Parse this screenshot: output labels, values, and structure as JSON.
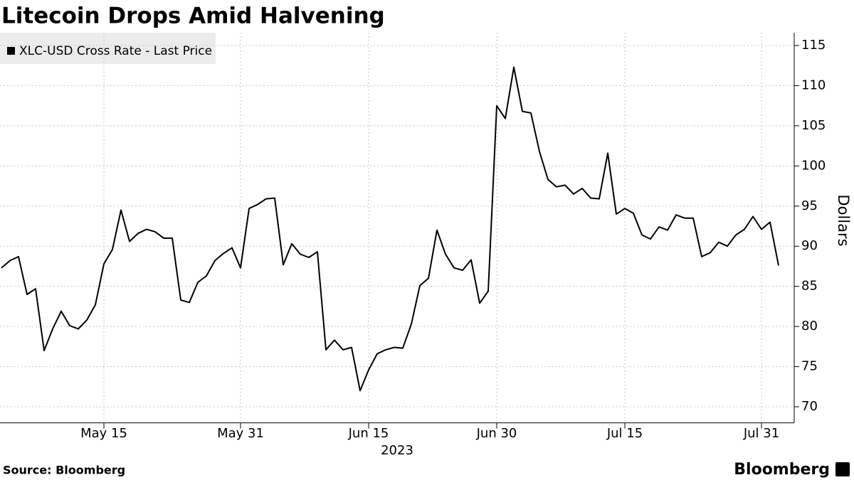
{
  "chart_data": {
    "type": "line",
    "title": "Litecoin Drops Amid Halvening",
    "y_label": "Dollars",
    "x_sublabel": "2023",
    "source": "Source: Bloomberg",
    "brand": "Bloomberg",
    "grid": true,
    "legend": "top-left",
    "xlim": [
      "2023-05-03",
      "2023-08-04"
    ],
    "ylim": [
      68,
      117
    ],
    "yticks": [
      70,
      75,
      80,
      85,
      90,
      95,
      100,
      105,
      110,
      115
    ],
    "xticks": [
      {
        "value": "2023-05-15",
        "label": "May 15"
      },
      {
        "value": "2023-05-31",
        "label": "May 31"
      },
      {
        "value": "2023-06-15",
        "label": "Jun 15"
      },
      {
        "value": "2023-06-30",
        "label": "Jun 30"
      },
      {
        "value": "2023-07-15",
        "label": "Jul 15"
      },
      {
        "value": "2023-07-31",
        "label": "Jul 31"
      }
    ],
    "x": [
      "2023-05-03",
      "2023-05-04",
      "2023-05-05",
      "2023-05-06",
      "2023-05-07",
      "2023-05-08",
      "2023-05-09",
      "2023-05-10",
      "2023-05-11",
      "2023-05-12",
      "2023-05-13",
      "2023-05-14",
      "2023-05-15",
      "2023-05-16",
      "2023-05-17",
      "2023-05-18",
      "2023-05-19",
      "2023-05-20",
      "2023-05-21",
      "2023-05-22",
      "2023-05-23",
      "2023-05-24",
      "2023-05-25",
      "2023-05-26",
      "2023-05-27",
      "2023-05-28",
      "2023-05-29",
      "2023-05-30",
      "2023-05-31",
      "2023-06-01",
      "2023-06-02",
      "2023-06-03",
      "2023-06-04",
      "2023-06-05",
      "2023-06-06",
      "2023-06-07",
      "2023-06-08",
      "2023-06-09",
      "2023-06-10",
      "2023-06-11",
      "2023-06-12",
      "2023-06-13",
      "2023-06-14",
      "2023-06-15",
      "2023-06-16",
      "2023-06-17",
      "2023-06-18",
      "2023-06-19",
      "2023-06-20",
      "2023-06-21",
      "2023-06-22",
      "2023-06-23",
      "2023-06-24",
      "2023-06-25",
      "2023-06-26",
      "2023-06-27",
      "2023-06-28",
      "2023-06-29",
      "2023-06-30",
      "2023-07-01",
      "2023-07-02",
      "2023-07-03",
      "2023-07-04",
      "2023-07-05",
      "2023-07-06",
      "2023-07-07",
      "2023-07-08",
      "2023-07-09",
      "2023-07-10",
      "2023-07-11",
      "2023-07-12",
      "2023-07-13",
      "2023-07-14",
      "2023-07-15",
      "2023-07-16",
      "2023-07-17",
      "2023-07-18",
      "2023-07-19",
      "2023-07-20",
      "2023-07-21",
      "2023-07-22",
      "2023-07-23",
      "2023-07-24",
      "2023-07-25",
      "2023-07-26",
      "2023-07-27",
      "2023-07-28",
      "2023-07-29",
      "2023-07-30",
      "2023-07-31",
      "2023-08-01",
      "2023-08-02"
    ],
    "series": [
      {
        "name": "XLC-USD Cross Rate - Last Price",
        "color": "#000000",
        "values": [
          87.3,
          88.2,
          88.7,
          84.0,
          84.7,
          77.0,
          79.7,
          81.9,
          80.1,
          79.7,
          80.8,
          82.7,
          87.8,
          89.6,
          94.5,
          90.6,
          91.6,
          92.1,
          91.8,
          91.0,
          91.0,
          83.3,
          83.0,
          85.5,
          86.3,
          88.2,
          89.1,
          89.8,
          87.3,
          94.7,
          95.2,
          95.9,
          96.0,
          87.7,
          90.3,
          89.0,
          88.6,
          89.3,
          77.1,
          78.3,
          77.1,
          77.4,
          72.0,
          74.6,
          76.6,
          77.1,
          77.4,
          77.3,
          80.3,
          85.1,
          86.0,
          92.0,
          89.0,
          87.3,
          87.0,
          88.3,
          82.9,
          84.4,
          107.5,
          105.9,
          112.3,
          106.8,
          106.6,
          101.8,
          98.3,
          97.4,
          97.6,
          96.5,
          97.2,
          96.0,
          95.9,
          101.6,
          94.0,
          94.7,
          94.1,
          91.4,
          90.9,
          92.4,
          92.0,
          93.9,
          93.5,
          93.5,
          88.7,
          89.2,
          90.5,
          90.0,
          91.4,
          92.1,
          93.7,
          92.1,
          93.0,
          87.6
        ]
      }
    ]
  }
}
